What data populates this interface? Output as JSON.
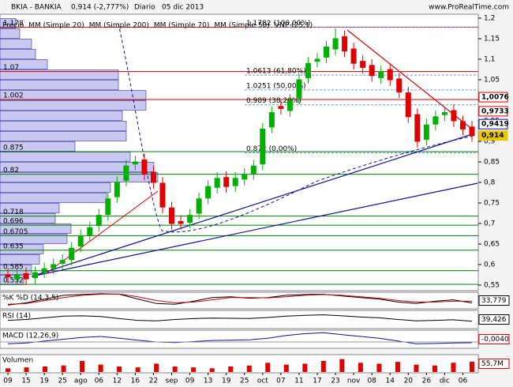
{
  "header": {
    "symbol": "BKIA - BANKIA",
    "quote": "0,914 (-2,777%)",
    "period": "Diario",
    "date": "05 dic 2013",
    "site": "www.ProRealTime.com"
  },
  "chart_data": [
    {
      "type": "candlestick",
      "legend": [
        {
          "name": "Precio",
          "color": "#000000"
        },
        {
          "name": "MM (Simple 20)",
          "color": "#d00000"
        },
        {
          "name": "MM (Simple 200)",
          "color": "#007000"
        },
        {
          "name": "MM (Simple 70)",
          "color": "#1010a0"
        },
        {
          "name": "MM (Simple 50)",
          "color": "#aaaaaa"
        },
        {
          "name": "VNP (25,1)",
          "color": "#aaaaaa"
        }
      ],
      "categories": [
        "09",
        null,
        "15",
        null,
        "19",
        null,
        "25",
        null,
        "ago",
        null,
        "06",
        null,
        "12",
        null,
        "16",
        null,
        "22",
        null,
        "sep",
        null,
        "09",
        null,
        "13",
        null,
        "19",
        null,
        "25",
        null,
        "oct",
        null,
        "07",
        null,
        "11",
        null,
        "17",
        null,
        "23",
        null,
        "nov",
        null,
        "08",
        null,
        "14",
        null,
        "20",
        null,
        "26",
        null,
        "dic",
        null,
        "06",
        null
      ],
      "open": [
        0.575,
        0.565,
        0.578,
        0.568,
        0.582,
        0.592,
        0.603,
        0.612,
        0.645,
        0.672,
        0.695,
        0.722,
        0.765,
        0.805,
        0.845,
        0.855,
        0.825,
        0.798,
        0.738,
        0.705,
        0.703,
        0.725,
        0.762,
        0.788,
        0.812,
        0.792,
        0.808,
        0.822,
        0.845,
        0.935,
        0.985,
        0.975,
        1.005,
        1.055,
        1.095,
        1.105,
        1.125,
        1.155,
        1.125,
        1.095,
        1.085,
        1.055,
        1.075,
        1.052,
        1.018,
        0.965,
        0.905,
        0.942,
        0.965,
        0.975,
        0.948,
        0.935
      ],
      "high": [
        0.59,
        0.59,
        0.593,
        0.595,
        0.605,
        0.615,
        0.625,
        0.655,
        0.685,
        0.705,
        0.735,
        0.775,
        0.815,
        0.855,
        0.865,
        0.87,
        0.84,
        0.813,
        0.753,
        0.72,
        0.735,
        0.775,
        0.805,
        0.825,
        0.827,
        0.825,
        0.835,
        0.855,
        0.945,
        0.985,
        1.0,
        1.015,
        1.065,
        1.105,
        1.115,
        1.145,
        1.175,
        1.17,
        1.14,
        1.11,
        1.1,
        1.085,
        1.09,
        1.067,
        1.033,
        0.98,
        0.955,
        0.975,
        0.985,
        0.99,
        0.963,
        0.95
      ],
      "low": [
        0.555,
        0.55,
        0.55,
        0.553,
        0.567,
        0.577,
        0.588,
        0.597,
        0.63,
        0.657,
        0.68,
        0.707,
        0.75,
        0.79,
        0.83,
        0.805,
        0.785,
        0.725,
        0.685,
        0.685,
        0.688,
        0.71,
        0.747,
        0.773,
        0.775,
        0.777,
        0.793,
        0.807,
        0.83,
        0.92,
        0.965,
        0.96,
        0.99,
        1.04,
        1.08,
        1.09,
        1.11,
        1.105,
        1.075,
        1.065,
        1.045,
        1.04,
        1.035,
        1.005,
        0.945,
        0.885,
        0.89,
        0.927,
        0.95,
        0.935,
        0.915,
        0.899
      ],
      "close": [
        0.57,
        0.575,
        0.565,
        0.58,
        0.59,
        0.6,
        0.61,
        0.64,
        0.67,
        0.69,
        0.72,
        0.76,
        0.8,
        0.84,
        0.85,
        0.82,
        0.8,
        0.74,
        0.7,
        0.7,
        0.72,
        0.76,
        0.79,
        0.81,
        0.79,
        0.81,
        0.82,
        0.84,
        0.93,
        0.97,
        0.98,
        1.0,
        1.05,
        1.09,
        1.1,
        1.13,
        1.15,
        1.12,
        1.09,
        1.08,
        1.06,
        1.07,
        1.05,
        1.02,
        0.96,
        0.9,
        0.94,
        0.96,
        0.97,
        0.95,
        0.93,
        0.914
      ],
      "up_color": "#00b000",
      "down_color": "#e00000",
      "ylim": [
        0.5365,
        1.2096
      ],
      "yticks": [
        {
          "value": 0.55,
          "label": "0,55"
        },
        {
          "value": 0.6,
          "label": "0,6"
        },
        {
          "value": 0.65,
          "label": "0,65"
        },
        {
          "value": 0.7,
          "label": "0,7"
        },
        {
          "value": 0.75,
          "label": "0,75"
        },
        {
          "value": 0.8,
          "label": "0,8"
        },
        {
          "value": 0.85,
          "label": "0,85"
        },
        {
          "value": 0.9,
          "label": "0,9"
        },
        {
          "value": 0.95,
          "label": "0,95"
        },
        1,
        {
          "value": 1.05,
          "label": "1,05"
        },
        {
          "value": 1.1,
          "label": "1,1"
        },
        {
          "value": 1.15,
          "label": "1,15"
        },
        {
          "value": 1.2,
          "label": "1,2"
        }
      ],
      "levels": [
        {
          "value": 1.178,
          "color": "#d00000"
        },
        {
          "value": 1.07,
          "color": "#d00000"
        },
        {
          "value": 1.002,
          "color": "#d00000"
        },
        {
          "value": 0.875,
          "color": "#008000"
        },
        {
          "value": 0.82,
          "color": "#008000"
        },
        {
          "value": 0.718,
          "color": "#008000"
        },
        {
          "value": 0.696,
          "color": "#008000"
        },
        {
          "value": 0.6705,
          "color": "#008000"
        },
        {
          "value": 0.635,
          "color": "#008000"
        },
        {
          "value": 0.585,
          "color": "#008000"
        },
        {
          "value": 0.552,
          "color": "#008000"
        }
      ],
      "fibonacci": [
        {
          "value": 1.1782,
          "label": "1.1782 (100,00%)"
        },
        {
          "value": 1.0613,
          "label": "1.0613 (61,80%)"
        },
        {
          "value": 1.0251,
          "label": "1.0251 (50,00%)"
        },
        {
          "value": 0.989,
          "label": "0.989 (38,20%)"
        },
        {
          "value": 0.872,
          "label": "0.872 (0,00%)"
        }
      ],
      "price_labels": [
        {
          "value": 1.0076,
          "label": "1,0076",
          "color": "#e00000"
        },
        {
          "value": 0.9733,
          "label": "0,9733",
          "color": "#e00000"
        },
        {
          "value": 0.9419,
          "label": "0,9419",
          "color": "#1010a0"
        },
        {
          "value": 0.914,
          "label": "0,914",
          "color": "#e8c800"
        }
      ],
      "volume_profile": {
        "bins": [
          0.55,
          0.575,
          0.6,
          0.625,
          0.65,
          0.675,
          0.7,
          0.725,
          0.75,
          0.775,
          0.8,
          0.825,
          0.85,
          0.875,
          0.9,
          0.925,
          0.95,
          0.975,
          1.0,
          1.025,
          1.05,
          1.075,
          1.1,
          1.125,
          1.15,
          1.175,
          1.2
        ],
        "values": [
          30,
          40,
          50,
          55,
          85,
          90,
          70,
          75,
          135,
          140,
          200,
          195,
          165,
          95,
          160,
          160,
          155,
          185,
          185,
          150,
          150,
          60,
          45,
          40,
          25,
          20
        ],
        "color": "#c8c8f0"
      }
    },
    {
      "type": "line",
      "title": "%K %D (14,3,5)",
      "ylim": [
        0,
        100
      ],
      "series": [
        {
          "name": "%K",
          "color": "#000000",
          "values": [
            20,
            35,
            60,
            85,
            90,
            95,
            92,
            60,
            30,
            25,
            45,
            70,
            75,
            65,
            70,
            85,
            90,
            92,
            80,
            70,
            60,
            40,
            30,
            45,
            55,
            33.779
          ]
        },
        {
          "name": "%D",
          "color": "#d00000",
          "values": [
            25,
            30,
            50,
            70,
            85,
            92,
            93,
            75,
            50,
            35,
            40,
            55,
            70,
            70,
            68,
            75,
            85,
            90,
            85,
            75,
            65,
            50,
            40,
            40,
            45,
            45
          ]
        }
      ],
      "readout": {
        "value": 33.779,
        "label": "33,779",
        "color": "#000000"
      }
    },
    {
      "type": "line",
      "title": "RSI (14)",
      "ylim": [
        0,
        100
      ],
      "series": [
        {
          "name": "RSI",
          "color": "#000000",
          "values": [
            45,
            50,
            60,
            70,
            72,
            68,
            55,
            45,
            42,
            50,
            55,
            58,
            57,
            56,
            62,
            70,
            75,
            78,
            72,
            65,
            60,
            50,
            42,
            45,
            48,
            39.426
          ]
        }
      ],
      "readout": {
        "value": 39.426,
        "label": "39,426",
        "color": "#000000"
      }
    },
    {
      "type": "line",
      "title": "MACD (12,26,9)",
      "ylim": [
        -0.03,
        0.06
      ],
      "series": [
        {
          "name": "MACD",
          "color": "#1010a0",
          "values": [
            -0.01,
            -0.005,
            0.005,
            0.015,
            0.025,
            0.03,
            0.02,
            0.01,
            0,
            -0.003,
            0.002,
            0.008,
            0.01,
            0.012,
            0.02,
            0.035,
            0.045,
            0.05,
            0.04,
            0.03,
            0.02,
            0.005,
            -0.01,
            -0.008,
            -0.005,
            -0.004
          ]
        }
      ],
      "readout": {
        "value": -0.004,
        "label": "-0,0040",
        "color": "#e00000"
      }
    },
    {
      "type": "bar",
      "title": "Volumen",
      "ylim": [
        0,
        90
      ],
      "color": "#e00000",
      "values": [
        20,
        25,
        30,
        35,
        60,
        40,
        30,
        25,
        45,
        30,
        25,
        20,
        30,
        35,
        50,
        40,
        45,
        60,
        70,
        50,
        45,
        55,
        40,
        35,
        50,
        55.7
      ],
      "readout": {
        "value": 55.7,
        "label": "55,7M",
        "color": "#e00000"
      }
    }
  ]
}
